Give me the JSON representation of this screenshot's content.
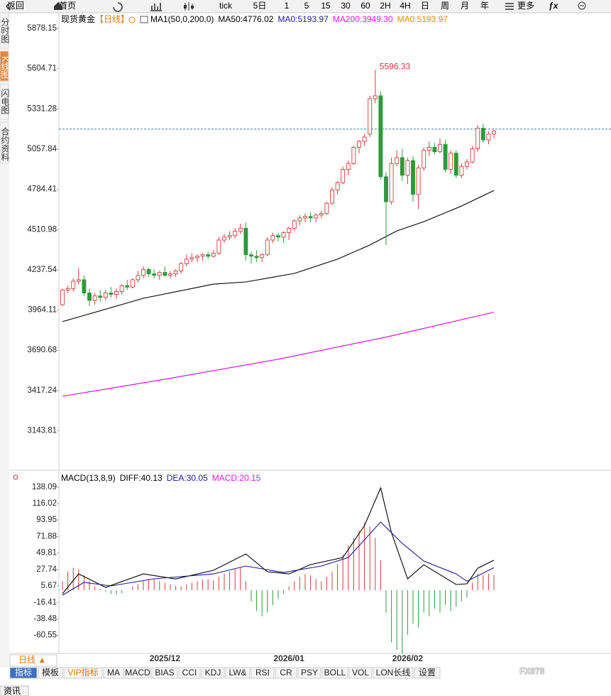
{
  "toolbar": [
    "返回",
    "首页",
    "tick",
    "5日",
    "1",
    "5",
    "15",
    "30",
    "60",
    "2H",
    "4H",
    "日",
    "周",
    "月",
    "年",
    "更多"
  ],
  "side_tabs": [
    "分时图",
    "K线图",
    "闪电图",
    "合约资料"
  ],
  "period_button": "日线 ▲",
  "bottom_tabs": [
    "指标",
    "模板",
    "VIP指标",
    "MA",
    "MACD",
    "BIAS",
    "CCI",
    "KDJ",
    "LW&",
    "RSI",
    "CR",
    "PSY",
    "BOLL",
    "VOL",
    "LON长线",
    "设置"
  ],
  "news_tab": "资讯",
  "watermark": "FX678",
  "chart_data": [
    {
      "type": "candlestick",
      "title": "现货黄金",
      "title_tag": "【日线】",
      "indicators": [
        {
          "label": "MA1(50,0,200,0)",
          "color": "#000000"
        },
        {
          "label": "MA50:4776.02",
          "color": "#000000"
        },
        {
          "label": "MA0:5193.97",
          "color": "#1a1a9c"
        },
        {
          "label": "MA200:3949.30",
          "color": "#e020e0"
        },
        {
          "label": "MA0:5193.97",
          "color": "#e08a1a"
        }
      ],
      "categories": [
        null,
        null,
        null,
        null,
        null,
        null,
        null,
        null,
        null,
        null,
        null,
        null,
        null,
        null,
        null,
        null,
        null,
        null,
        null,
        "2025/12",
        null,
        null,
        null,
        null,
        null,
        null,
        null,
        null,
        null,
        null,
        null,
        null,
        null,
        null,
        null,
        null,
        null,
        null,
        null,
        null,
        null,
        null,
        "2026/01",
        null,
        null,
        null,
        null,
        null,
        null,
        null,
        null,
        null,
        null,
        null,
        null,
        null,
        null,
        null,
        null,
        null,
        null,
        null,
        null,
        null,
        "2026/02",
        null,
        null,
        null,
        null,
        null,
        null,
        null,
        null,
        null,
        null,
        null,
        null,
        null,
        null,
        null,
        null
      ],
      "open": [
        4000,
        4100,
        4110,
        4160,
        4170,
        4080,
        4030,
        4060,
        4050,
        4080,
        4070,
        4090,
        4130,
        4120,
        4170,
        4200,
        4240,
        4210,
        4200,
        4220,
        4200,
        4210,
        4230,
        4280,
        4310,
        4320,
        4330,
        4340,
        4330,
        4350,
        4440,
        4460,
        4470,
        4500,
        4520,
        4340,
        4330,
        4320,
        4340,
        4440,
        4470,
        4460,
        4490,
        4520,
        4570,
        4590,
        4600,
        4590,
        4610,
        4620,
        4690,
        4780,
        4830,
        4920,
        4960,
        5070,
        5110,
        5160,
        5400,
        5420,
        4870,
        4700,
        4960,
        5000,
        4880,
        4980,
        4750,
        4930,
        5050,
        5070,
        5040,
        5090,
        4920,
        5030,
        4880,
        4940,
        4970,
        5060,
        5200,
        5120,
        5160
      ],
      "high": [
        4110,
        4130,
        4180,
        4250,
        4200,
        4110,
        4080,
        4100,
        4100,
        4120,
        4110,
        4140,
        4170,
        4180,
        4230,
        4260,
        4250,
        4240,
        4230,
        4260,
        4230,
        4240,
        4290,
        4340,
        4350,
        4340,
        4350,
        4360,
        4370,
        4460,
        4480,
        4500,
        4520,
        4550,
        4560,
        4360,
        4370,
        4350,
        4460,
        4490,
        4490,
        4500,
        4530,
        4580,
        4610,
        4620,
        4630,
        4620,
        4640,
        4700,
        4800,
        4840,
        4940,
        4980,
        5080,
        5120,
        5160,
        5420,
        5596.33,
        5450,
        4900,
        5000,
        5050,
        5060,
        5000,
        5010,
        4950,
        5070,
        5110,
        5100,
        5130,
        5120,
        5050,
        5050,
        4960,
        4990,
        5080,
        5220,
        5230,
        5180,
        5190
      ],
      "low": [
        3990,
        4080,
        4090,
        4140,
        4060,
        3990,
        4000,
        4020,
        4030,
        4050,
        4040,
        4070,
        4100,
        4110,
        4150,
        4180,
        4190,
        4180,
        4170,
        4190,
        4180,
        4190,
        4210,
        4260,
        4290,
        4290,
        4300,
        4310,
        4320,
        4340,
        4420,
        4440,
        4450,
        4480,
        4300,
        4280,
        4290,
        4290,
        4330,
        4420,
        4430,
        4420,
        4440,
        4500,
        4540,
        4560,
        4560,
        4560,
        4590,
        4610,
        4680,
        4750,
        4820,
        4880,
        4950,
        5030,
        5080,
        5140,
        5370,
        4850,
        4406,
        4680,
        4940,
        4840,
        4820,
        4700,
        4650,
        4910,
        5010,
        5020,
        5030,
        4900,
        4890,
        4860,
        4860,
        4920,
        4960,
        5040,
        5100,
        5090,
        5130
      ],
      "close": [
        4100,
        4110,
        4160,
        4170,
        4080,
        4030,
        4060,
        4050,
        4080,
        4070,
        4090,
        4130,
        4120,
        4170,
        4200,
        4240,
        4210,
        4200,
        4220,
        4200,
        4210,
        4230,
        4280,
        4310,
        4320,
        4330,
        4340,
        4330,
        4350,
        4440,
        4460,
        4470,
        4500,
        4520,
        4340,
        4330,
        4320,
        4340,
        4440,
        4470,
        4460,
        4490,
        4520,
        4570,
        4590,
        4600,
        4590,
        4610,
        4620,
        4690,
        4780,
        4830,
        4920,
        4960,
        5070,
        5110,
        5140,
        5400,
        5420,
        4870,
        4700,
        4960,
        5000,
        4880,
        4980,
        4750,
        4930,
        5050,
        5070,
        5040,
        5090,
        4920,
        5030,
        4880,
        4940,
        4970,
        5060,
        5200,
        5120,
        5160,
        5180
      ],
      "up_color": "#d23c3c",
      "down_color": "#2e9a3a",
      "lines": [
        {
          "color": "#000000",
          "x": [
            0,
            15,
            28,
            34,
            43,
            51,
            57,
            62,
            67,
            74,
            80
          ],
          "values": [
            3885,
            4044,
            4140,
            4155,
            4213,
            4310,
            4406,
            4502,
            4565,
            4671,
            4776.02
          ]
        },
        {
          "color": "#dd00dd",
          "x": [
            0,
            20,
            40,
            60,
            80
          ],
          "values": [
            3378,
            3500,
            3630,
            3780,
            3949.3
          ]
        }
      ],
      "price_line": 5193.97,
      "ylim": [
        2885.6,
        5984.3
      ],
      "yticks": [
        3143.81,
        3417.24,
        3690.68,
        3964.11,
        4237.54,
        4510.98,
        4784.41,
        5057.84,
        5331.28,
        5604.71,
        5878.15
      ]
    },
    {
      "type": "macd",
      "indicators": [
        {
          "label": "MACD(13,8,9)",
          "color": "#000000"
        },
        {
          "label": "DIFF:40.13",
          "color": "#000000"
        },
        {
          "label": "DEA:30.05",
          "color": "#1a1a9c"
        },
        {
          "label": "MACD:20.15",
          "color": "#e020e0"
        }
      ],
      "histogram": [
        12,
        25,
        30,
        28,
        20,
        12,
        5,
        2,
        -2,
        -5,
        -6,
        -4,
        0,
        5,
        8,
        12,
        15,
        14,
        12,
        10,
        8,
        6,
        5,
        8,
        10,
        12,
        14,
        15,
        13,
        18,
        22,
        25,
        28,
        30,
        12,
        -15,
        -28,
        -35,
        -30,
        -20,
        -12,
        -5,
        5,
        12,
        18,
        22,
        20,
        15,
        12,
        18,
        25,
        35,
        48,
        60,
        70,
        80,
        90,
        85,
        70,
        40,
        -30,
        -70,
        -80,
        -85,
        -60,
        -45,
        -50,
        -30,
        -35,
        -25,
        -30,
        -20,
        -28,
        -22,
        -15,
        -10,
        10,
        22,
        20,
        22,
        20.15
      ],
      "up_color": "#d23c3c",
      "down_color": "#2e9a3a",
      "lines": [
        {
          "color": "#000000",
          "x": [
            0,
            3,
            8,
            15,
            21,
            28,
            34,
            38,
            42,
            46,
            52,
            56,
            59,
            61,
            64,
            67,
            73,
            75,
            77,
            80
          ],
          "values": [
            -4.8,
            21.8,
            3.8,
            21.8,
            15,
            26.6,
            48.5,
            24.7,
            21.8,
            34.2,
            43.7,
            86.5,
            137,
            77,
            15.2,
            34,
            7.6,
            8.5,
            29.4,
            40.13
          ]
        },
        {
          "color": "#1a1a9c",
          "x": [
            0,
            4,
            9,
            17,
            28,
            34,
            41,
            48,
            53,
            59,
            63,
            67,
            73,
            75,
            80
          ],
          "values": [
            -6.7,
            10.4,
            5.7,
            15.2,
            21.8,
            32.3,
            23.7,
            32.3,
            43.7,
            91.3,
            62.7,
            39,
            21.8,
            12,
            30.05
          ]
        }
      ],
      "ylim": [
        -84.7,
        157.9
      ],
      "yticks": [
        -60.55,
        -38.48,
        -16.41,
        5.67,
        27.74,
        49.81,
        71.88,
        93.95,
        116.02,
        138.09
      ]
    }
  ]
}
